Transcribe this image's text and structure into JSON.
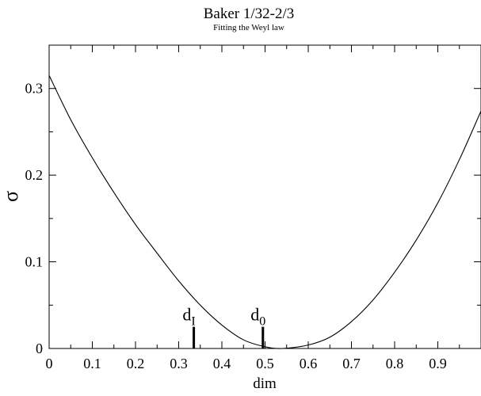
{
  "chart_data": {
    "type": "line",
    "title": "Baker 1/32-2/3",
    "subtitle": "Fitting the Weyl law",
    "xlabel": "dim",
    "ylabel": "σ",
    "xlim": [
      0,
      1
    ],
    "ylim": [
      0,
      0.35
    ],
    "x_ticks": [
      0,
      0.1,
      0.2,
      0.3,
      0.4,
      0.5,
      0.6,
      0.7,
      0.8,
      0.9
    ],
    "x_tick_labels": [
      "0",
      "0.1",
      "0.2",
      "0.3",
      "0.4",
      "0.5",
      "0.6",
      "0.7",
      "0.8",
      "0.9"
    ],
    "y_ticks": [
      0,
      0.1,
      0.2,
      0.3
    ],
    "y_tick_labels": [
      "0",
      "0.1",
      "0.2",
      "0.3"
    ],
    "grid": false,
    "series": [
      {
        "x": [
          0.0,
          0.05,
          0.1,
          0.15,
          0.2,
          0.25,
          0.3,
          0.35,
          0.4,
          0.45,
          0.5,
          0.54,
          0.6,
          0.65,
          0.7,
          0.75,
          0.8,
          0.85,
          0.9,
          0.95,
          1.0
        ],
        "y": [
          0.315,
          0.264,
          0.22,
          0.18,
          0.143,
          0.11,
          0.078,
          0.05,
          0.027,
          0.01,
          0.002,
          0.0,
          0.004,
          0.013,
          0.031,
          0.056,
          0.088,
          0.125,
          0.168,
          0.218,
          0.274
        ]
      }
    ],
    "markers": [
      {
        "label_base": "d",
        "label_sub": "I",
        "x": 0.335,
        "y_top": 0.025
      },
      {
        "label_base": "d",
        "label_sub": "0",
        "x": 0.495,
        "y_top": 0.025
      }
    ]
  }
}
